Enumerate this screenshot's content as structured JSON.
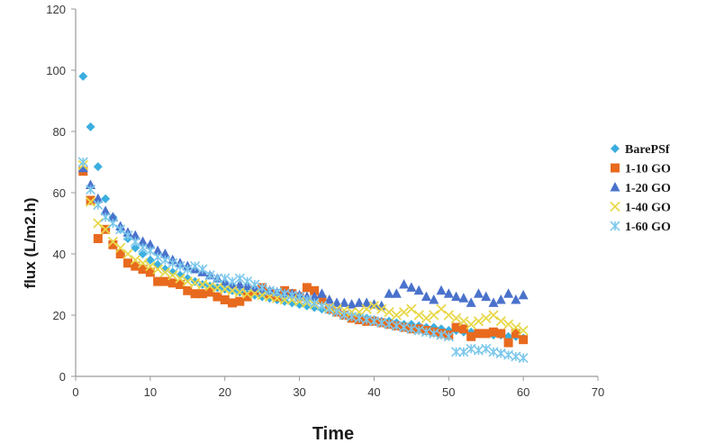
{
  "chart_data": {
    "type": "scatter",
    "title": "",
    "xlabel": "Time",
    "ylabel": "flux (L/m2.h)",
    "xlim": [
      0,
      70
    ],
    "ylim": [
      0,
      120
    ],
    "x_ticks": [
      0,
      10,
      20,
      30,
      40,
      50,
      60,
      70
    ],
    "y_ticks": [
      0,
      20,
      40,
      60,
      80,
      100,
      120
    ],
    "grid": false,
    "legend_position": "right",
    "series": [
      {
        "name": "BarePSf",
        "marker": "diamond",
        "color": "#3aaee0",
        "x": [
          1,
          2,
          3,
          4,
          5,
          6,
          7,
          8,
          9,
          10,
          11,
          12,
          13,
          14,
          15,
          16,
          17,
          18,
          19,
          20,
          21,
          22,
          23,
          24,
          25,
          26,
          27,
          28,
          29,
          30,
          31,
          32,
          33,
          34,
          35,
          36,
          37,
          38,
          39,
          40,
          41,
          42,
          43,
          44,
          45,
          46,
          47,
          48,
          49,
          50,
          51,
          52,
          53,
          54,
          55,
          56,
          57,
          58,
          59,
          60
        ],
        "y": [
          98,
          81.5,
          68.5,
          58,
          52,
          48,
          45,
          42,
          40,
          38,
          36.5,
          35,
          34,
          33,
          32,
          31,
          30,
          29.5,
          29,
          28.5,
          28,
          27.5,
          27,
          26.5,
          26,
          25.5,
          25,
          24.5,
          24,
          23.5,
          23,
          22.5,
          22,
          21.5,
          21,
          20.5,
          20,
          19.5,
          19,
          18.5,
          18,
          18,
          17.5,
          17,
          17,
          16.5,
          16,
          16,
          15.5,
          15,
          15,
          14.5,
          14.5,
          14,
          14,
          13.5,
          13.5,
          13,
          13,
          12.5
        ]
      },
      {
        "name": "1-10 GO",
        "marker": "square",
        "color": "#e86a1e",
        "x": [
          1,
          2,
          3,
          4,
          5,
          6,
          7,
          8,
          9,
          10,
          11,
          12,
          13,
          14,
          15,
          16,
          17,
          18,
          19,
          20,
          21,
          22,
          23,
          24,
          25,
          26,
          27,
          28,
          29,
          30,
          31,
          32,
          33,
          34,
          35,
          36,
          37,
          38,
          39,
          40,
          41,
          42,
          43,
          44,
          45,
          46,
          47,
          48,
          49,
          50,
          51,
          52,
          53,
          54,
          55,
          56,
          57,
          58,
          59,
          60
        ],
        "y": [
          67,
          57.5,
          45,
          48,
          43,
          40,
          37,
          36,
          35,
          34,
          31,
          31,
          30.5,
          30,
          28,
          27,
          27,
          27.5,
          26,
          25,
          24,
          24.5,
          26,
          28,
          29,
          27,
          26,
          28,
          27,
          26,
          29,
          28,
          25,
          22,
          21,
          20,
          19,
          18.5,
          18,
          18,
          17.5,
          17,
          16.5,
          16,
          15.5,
          15.5,
          15,
          14.5,
          14,
          13.5,
          16,
          15.5,
          13,
          14,
          14,
          14.5,
          14,
          11,
          14,
          12
        ]
      },
      {
        "name": "1-20 GO",
        "marker": "triangle",
        "color": "#4a72cc",
        "x": [
          1,
          2,
          3,
          4,
          5,
          6,
          7,
          8,
          9,
          10,
          11,
          12,
          13,
          14,
          15,
          16,
          17,
          18,
          19,
          20,
          21,
          22,
          23,
          24,
          25,
          26,
          27,
          28,
          29,
          30,
          31,
          32,
          33,
          34,
          35,
          36,
          37,
          38,
          39,
          40,
          41,
          42,
          43,
          44,
          45,
          46,
          47,
          48,
          49,
          50,
          51,
          52,
          53,
          54,
          55,
          56,
          57,
          58,
          59,
          60
        ],
        "y": [
          68,
          62.5,
          58,
          54,
          52,
          49,
          47,
          46,
          44,
          43,
          41,
          40,
          38,
          37,
          36,
          35,
          34,
          33,
          32,
          31,
          30,
          30,
          29.5,
          29,
          28.5,
          28,
          27.5,
          27,
          27,
          26.5,
          26,
          26,
          27,
          25,
          24,
          24,
          23.5,
          24,
          24,
          23.5,
          23,
          27,
          27,
          30,
          29,
          28,
          26,
          25,
          28,
          27,
          26,
          25.5,
          24,
          27,
          26,
          24,
          25,
          27,
          25,
          26.5
        ]
      },
      {
        "name": "1-40 GO",
        "marker": "x",
        "color": "#e8d84a",
        "x": [
          1,
          2,
          3,
          4,
          5,
          6,
          7,
          8,
          9,
          10,
          11,
          12,
          13,
          14,
          15,
          16,
          17,
          18,
          19,
          20,
          21,
          22,
          23,
          24,
          25,
          26,
          27,
          28,
          29,
          30,
          31,
          32,
          33,
          34,
          35,
          36,
          37,
          38,
          39,
          40,
          41,
          42,
          43,
          44,
          45,
          46,
          47,
          48,
          49,
          50,
          51,
          52,
          53,
          54,
          55,
          56,
          57,
          58,
          59,
          60
        ],
        "y": [
          69,
          57,
          50,
          48,
          44,
          42,
          40,
          38,
          37,
          36,
          35,
          34,
          33,
          32,
          31,
          30.5,
          30,
          29.5,
          29,
          28.5,
          28,
          27.5,
          27,
          27,
          26.5,
          26,
          25.5,
          25,
          25,
          24.5,
          24,
          23.5,
          23,
          22.5,
          22,
          21.5,
          21,
          21,
          22,
          23,
          22,
          21,
          20,
          21,
          22,
          20,
          19,
          20,
          22,
          20,
          19,
          18,
          17,
          18,
          19,
          20,
          18,
          17,
          16,
          15
        ]
      },
      {
        "name": "1-60 GO",
        "marker": "star",
        "color": "#7cc8ec",
        "x": [
          1,
          2,
          3,
          4,
          5,
          6,
          7,
          8,
          9,
          10,
          11,
          12,
          13,
          14,
          15,
          16,
          17,
          18,
          19,
          20,
          21,
          22,
          23,
          24,
          25,
          26,
          27,
          28,
          29,
          30,
          31,
          32,
          33,
          34,
          35,
          36,
          37,
          38,
          39,
          40,
          41,
          42,
          43,
          44,
          45,
          46,
          47,
          48,
          49,
          50,
          51,
          52,
          53,
          54,
          55,
          56,
          57,
          58,
          59,
          60
        ],
        "y": [
          70,
          61,
          56,
          52,
          50,
          48,
          46,
          44,
          42,
          41,
          39,
          38,
          37,
          36,
          35,
          36,
          35,
          33,
          32,
          32,
          31,
          32,
          31,
          30,
          29,
          28,
          27.5,
          27,
          26.5,
          26,
          25,
          24,
          23,
          22,
          21,
          20,
          19.5,
          19,
          18.5,
          18,
          17.5,
          17,
          16.5,
          16,
          15.5,
          15,
          14.5,
          14,
          13.5,
          13,
          8,
          8,
          9,
          8.5,
          9,
          8,
          7.5,
          7,
          6.5,
          6
        ]
      }
    ]
  }
}
